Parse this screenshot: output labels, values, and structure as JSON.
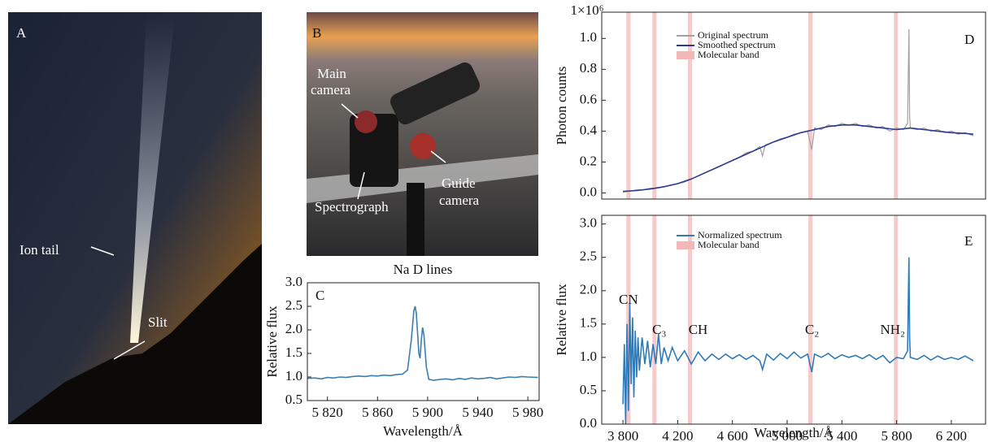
{
  "photos": [
    {
      "panel_label": "A",
      "labels": [
        [
          "Ion tail"
        ],
        [
          "Slit"
        ]
      ]
    },
    {
      "panel_label": "B",
      "labels": [
        [
          "Main",
          "camera"
        ],
        [
          "Spectrograph"
        ],
        [
          "Guide",
          "camera"
        ]
      ]
    }
  ],
  "chart_data": [
    {
      "type": "line",
      "panel_label": "C",
      "title": "Na D lines",
      "x_label": "Wavelength/Å",
      "y_label": "Relative flux",
      "xlim": [
        5804,
        5989
      ],
      "ylim": [
        0.5,
        3.0
      ],
      "xticks": [
        {
          "value": 5820,
          "label": "5 820"
        },
        {
          "value": 5860,
          "label": "5 860"
        },
        {
          "value": 5900,
          "label": "5 900"
        },
        {
          "value": 5940,
          "label": "5 940"
        },
        {
          "value": 5980,
          "label": "5 980"
        }
      ],
      "yticks": [
        0.5,
        {
          "value": 1.0,
          "label": "1.0"
        },
        1.5,
        {
          "value": 2.0,
          "label": "2.0"
        },
        2.5,
        {
          "value": 3.0,
          "label": "3.0"
        }
      ],
      "series": [
        {
          "color": "#3a7fb0",
          "x": [
            5804,
            5810,
            5815,
            5820,
            5825,
            5830,
            5835,
            5840,
            5845,
            5850,
            5855,
            5860,
            5865,
            5870,
            5875,
            5880,
            5884,
            5887,
            5889,
            5890,
            5891,
            5893,
            5894,
            5895,
            5896,
            5897,
            5899,
            5901,
            5905,
            5910,
            5915,
            5920,
            5925,
            5930,
            5935,
            5940,
            5945,
            5950,
            5955,
            5960,
            5965,
            5970,
            5975,
            5980,
            5988
          ],
          "values": [
            0.97,
            0.98,
            0.96,
            0.99,
            0.98,
            1.0,
            0.99,
            1.01,
            1.02,
            1.01,
            1.03,
            1.02,
            1.04,
            1.03,
            1.05,
            1.06,
            1.15,
            1.8,
            2.4,
            2.5,
            2.35,
            1.5,
            1.4,
            1.8,
            2.05,
            1.9,
            1.2,
            0.95,
            0.93,
            0.95,
            0.96,
            0.94,
            0.97,
            0.95,
            0.98,
            0.96,
            0.97,
            0.99,
            0.96,
            0.98,
            1.0,
            0.99,
            1.01,
            1.0,
            0.99
          ]
        }
      ]
    },
    {
      "type": "line",
      "panel_label": "D",
      "y_label": "Photon counts",
      "y_multiplier": "1×10⁶",
      "xlim": [
        3645,
        6450
      ],
      "ylim": [
        -0.04,
        1.17
      ],
      "yticks": [
        {
          "value": 0.0,
          "label": "0.0"
        },
        0.2,
        0.4,
        0.6,
        0.8,
        {
          "value": 1.0,
          "label": "1.0"
        }
      ],
      "bands": [
        [
          3825,
          3855
        ],
        [
          4015,
          4045
        ],
        [
          4275,
          4305
        ],
        [
          5155,
          5185
        ],
        [
          5780,
          5810
        ]
      ],
      "band_color": "#f2b8b8",
      "band_name": "Molecular band",
      "series": [
        {
          "name": "Original spectrum",
          "color": "#a0a0a0",
          "x": [
            3800,
            3850,
            3900,
            3950,
            4000,
            4050,
            4100,
            4150,
            4200,
            4250,
            4300,
            4350,
            4400,
            4450,
            4500,
            4550,
            4600,
            4650,
            4700,
            4750,
            4800,
            4820,
            4840,
            4900,
            4950,
            5000,
            5050,
            5100,
            5150,
            5180,
            5200,
            5250,
            5300,
            5350,
            5400,
            5450,
            5500,
            5550,
            5600,
            5650,
            5700,
            5750,
            5800,
            5850,
            5880,
            5890,
            5895,
            5900,
            5950,
            6000,
            6050,
            6100,
            6150,
            6200,
            6250,
            6300,
            6360
          ],
          "values": [
            0.005,
            0.01,
            0.02,
            0.02,
            0.03,
            0.03,
            0.04,
            0.05,
            0.06,
            0.07,
            0.09,
            0.11,
            0.13,
            0.15,
            0.17,
            0.19,
            0.21,
            0.23,
            0.26,
            0.27,
            0.3,
            0.24,
            0.31,
            0.33,
            0.35,
            0.36,
            0.38,
            0.39,
            0.4,
            0.28,
            0.42,
            0.41,
            0.44,
            0.43,
            0.45,
            0.44,
            0.45,
            0.43,
            0.44,
            0.42,
            0.43,
            0.4,
            0.42,
            0.41,
            0.45,
            1.06,
            0.5,
            0.42,
            0.41,
            0.42,
            0.4,
            0.41,
            0.39,
            0.4,
            0.38,
            0.39,
            0.37
          ]
        },
        {
          "name": "Smoothed spectrum",
          "color": "#2b3a8f",
          "x": [
            3800,
            3900,
            4000,
            4100,
            4200,
            4300,
            4400,
            4500,
            4600,
            4700,
            4800,
            4900,
            5000,
            5100,
            5200,
            5300,
            5400,
            5500,
            5600,
            5700,
            5800,
            5900,
            6000,
            6100,
            6200,
            6300,
            6360
          ],
          "values": [
            0.01,
            0.015,
            0.025,
            0.04,
            0.06,
            0.09,
            0.13,
            0.17,
            0.21,
            0.25,
            0.29,
            0.33,
            0.36,
            0.39,
            0.41,
            0.43,
            0.44,
            0.44,
            0.43,
            0.42,
            0.41,
            0.42,
            0.41,
            0.4,
            0.39,
            0.385,
            0.38
          ]
        }
      ]
    },
    {
      "type": "line",
      "panel_label": "E",
      "x_label": "Wavelength/Å",
      "y_label": "Relative flux",
      "xlim": [
        3645,
        6450
      ],
      "ylim": [
        0,
        3.13
      ],
      "xticks": [
        {
          "value": 3800,
          "label": "3 800"
        },
        {
          "value": 4200,
          "label": "4 200"
        },
        {
          "value": 4600,
          "label": "4 600"
        },
        {
          "value": 5000,
          "label": "5 000"
        },
        {
          "value": 5400,
          "label": "5 400"
        },
        {
          "value": 5800,
          "label": "5 800"
        },
        {
          "value": 6200,
          "label": "6 200"
        }
      ],
      "yticks": [
        {
          "value": 0.0,
          "label": "0.0"
        },
        0.5,
        {
          "value": 1.0,
          "label": "1.0"
        },
        1.5,
        {
          "value": 2.0,
          "label": "2.0"
        },
        2.5,
        {
          "value": 3.0,
          "label": "3.0"
        }
      ],
      "bands": [
        [
          3825,
          3855
        ],
        [
          4015,
          4045
        ],
        [
          4275,
          4305
        ],
        [
          5155,
          5185
        ],
        [
          5780,
          5810
        ]
      ],
      "band_color": "#f2b8b8",
      "band_name": "Molecular band",
      "annotations": [
        "CN",
        "C₃",
        "CH",
        "C₂",
        "NH₂"
      ],
      "series": [
        {
          "name": "Normalized spectrum",
          "color": "#2f7ab8",
          "x": [
            3800,
            3810,
            3820,
            3830,
            3840,
            3850,
            3860,
            3870,
            3880,
            3890,
            3900,
            3910,
            3920,
            3940,
            3960,
            3980,
            4000,
            4020,
            4040,
            4060,
            4080,
            4100,
            4130,
            4160,
            4200,
            4250,
            4300,
            4350,
            4400,
            4450,
            4500,
            4550,
            4600,
            4650,
            4700,
            4750,
            4800,
            4820,
            4850,
            4900,
            4950,
            5000,
            5050,
            5100,
            5150,
            5180,
            5200,
            5250,
            5300,
            5350,
            5400,
            5450,
            5500,
            5550,
            5600,
            5650,
            5700,
            5750,
            5800,
            5850,
            5880,
            5890,
            5895,
            5900,
            5950,
            6000,
            6050,
            6100,
            6150,
            6200,
            6250,
            6300,
            6360
          ],
          "values": [
            0.3,
            1.2,
            0.0,
            1.5,
            0.2,
            1.8,
            0.6,
            1.6,
            0.4,
            1.4,
            0.7,
            1.3,
            0.8,
            1.3,
            0.9,
            1.25,
            0.85,
            1.2,
            0.9,
            1.35,
            0.9,
            1.15,
            0.95,
            1.15,
            0.95,
            1.1,
            0.9,
            1.08,
            0.95,
            1.05,
            0.97,
            1.05,
            0.98,
            1.04,
            0.97,
            1.03,
            0.95,
            0.82,
            1.05,
            0.96,
            1.06,
            0.98,
            1.08,
            0.99,
            1.05,
            0.78,
            1.05,
            1.0,
            1.06,
            0.98,
            1.04,
            1.0,
            1.03,
            0.98,
            1.04,
            0.97,
            1.03,
            0.92,
            1.0,
            0.98,
            1.1,
            2.5,
            1.3,
            1.0,
            0.97,
            1.03,
            0.96,
            1.02,
            0.97,
            1.0,
            0.97,
            1.02,
            0.95
          ]
        }
      ]
    }
  ]
}
